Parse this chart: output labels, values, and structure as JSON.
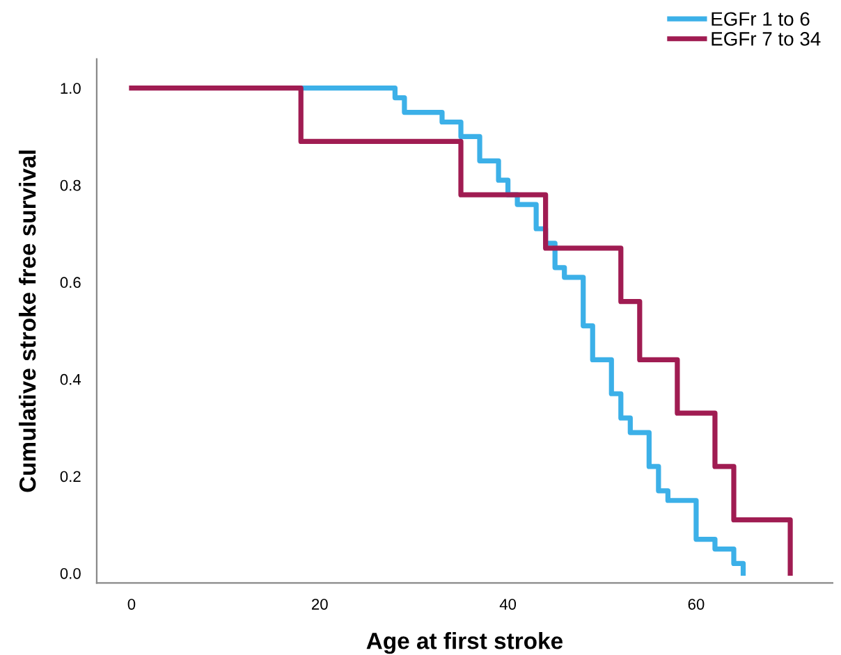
{
  "chart_data": {
    "type": "step",
    "xlabel": "Age at first stroke",
    "ylabel": "Cumulative stroke free survival",
    "xlim": [
      -3.7,
      74.5
    ],
    "xticks": [
      0,
      20,
      40,
      60
    ],
    "ylim": [
      -0.02,
      1.06
    ],
    "yticks": [
      {
        "value": 0,
        "label": "0.0"
      },
      {
        "value": 0.2,
        "label": "0.2"
      },
      {
        "value": 0.4,
        "label": "0.4"
      },
      {
        "value": 0.6,
        "label": "0.6"
      },
      {
        "value": 0.8,
        "label": "0.8"
      },
      {
        "value": 1,
        "label": "1.0"
      }
    ],
    "grid": false,
    "legend": "top right",
    "line_style": "solid",
    "series": [
      {
        "name": "EGFr 1 to 6",
        "color": "#3cb0e8",
        "x": [
          18,
          28,
          29,
          33,
          35,
          37,
          39,
          40,
          41,
          43,
          44,
          45,
          46,
          48,
          49,
          51,
          52,
          53,
          55,
          56,
          57,
          60,
          62,
          64,
          65
        ],
        "values": [
          1,
          0.98,
          0.95,
          0.93,
          0.9,
          0.85,
          0.81,
          0.78,
          0.76,
          0.71,
          0.68,
          0.63,
          0.61,
          0.51,
          0.44,
          0.37,
          0.32,
          0.29,
          0.22,
          0.17,
          0.15,
          0.07,
          0.05,
          0.02,
          0
        ]
      },
      {
        "name": "EGFr 7 to 34",
        "color": "#a01c52",
        "x": [
          0,
          18,
          35,
          44,
          52,
          54,
          58,
          62,
          64,
          70
        ],
        "values": [
          1,
          0.89,
          0.78,
          0.67,
          0.56,
          0.44,
          0.33,
          0.22,
          0.11,
          0
        ]
      }
    ]
  }
}
